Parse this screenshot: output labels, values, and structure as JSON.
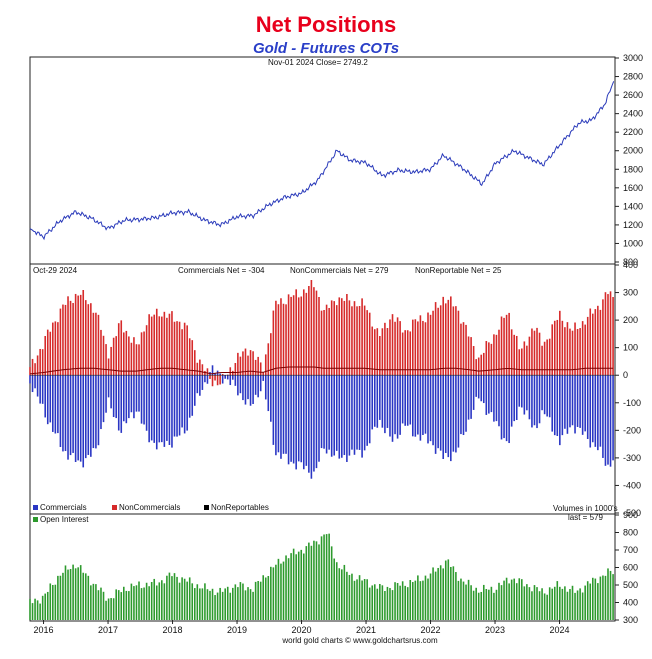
{
  "title": "Net Positions",
  "subtitle": "Gold - Futures COTs",
  "footer": "world gold charts © www.goldchartsrus.com",
  "colors": {
    "price": "#2a3aba",
    "commercials": "#2a36c4",
    "noncommercials": "#d62a2a",
    "nonreportables": "#000000",
    "open_interest": "#2d9a2d",
    "title": "#e8001c",
    "subtitle": "#2a3fc8"
  },
  "panels": {
    "price": {
      "annotation": "Nov-01  2024   Close= 2749.2"
    },
    "net": {
      "date": "Oct-29  2024",
      "commercials_label": "Commercials Net = -304",
      "noncommercials_label": "NonCommercials Net = 279",
      "nonreportables_label": "NonReportable Net = 25",
      "legend": [
        "Commercials",
        "NonCommercials",
        "NonReportables"
      ],
      "volume_note": "Volumes in 1000's"
    },
    "oi": {
      "legend": "Open Interest",
      "last": "last = 579"
    }
  },
  "chart_data": [
    {
      "type": "line",
      "name": "price",
      "x": [
        2015.79,
        2016.0,
        2016.25,
        2016.5,
        2016.75,
        2017.0,
        2017.25,
        2017.5,
        2017.75,
        2018.0,
        2018.25,
        2018.5,
        2018.75,
        2019.0,
        2019.25,
        2019.5,
        2019.75,
        2020.0,
        2020.25,
        2020.55,
        2020.75,
        2021.0,
        2021.25,
        2021.5,
        2021.75,
        2022.0,
        2022.2,
        2022.5,
        2022.8,
        2023.0,
        2023.3,
        2023.5,
        2023.75,
        2024.0,
        2024.3,
        2024.5,
        2024.7,
        2024.84
      ],
      "values": [
        1160,
        1070,
        1240,
        1340,
        1270,
        1160,
        1250,
        1260,
        1280,
        1330,
        1340,
        1250,
        1200,
        1290,
        1300,
        1420,
        1500,
        1540,
        1680,
        2000,
        1900,
        1870,
        1730,
        1790,
        1770,
        1800,
        1950,
        1810,
        1640,
        1860,
        2000,
        1930,
        1850,
        2060,
        2300,
        2330,
        2500,
        2749
      ],
      "ylim": [
        800,
        3000
      ],
      "yticks": [
        800,
        1000,
        1200,
        1400,
        1600,
        1800,
        2000,
        2200,
        2400,
        2600,
        2800,
        3000
      ]
    },
    {
      "type": "bar",
      "name": "net_positions",
      "x": [
        2015.79,
        2016.0,
        2016.3,
        2016.55,
        2016.8,
        2017.0,
        2017.2,
        2017.45,
        2017.6,
        2017.8,
        2018.0,
        2018.2,
        2018.4,
        2018.6,
        2018.75,
        2019.0,
        2019.2,
        2019.4,
        2019.6,
        2019.8,
        2020.0,
        2020.2,
        2020.35,
        2020.55,
        2020.75,
        2021.0,
        2021.2,
        2021.4,
        2021.6,
        2021.8,
        2022.0,
        2022.2,
        2022.4,
        2022.6,
        2022.75,
        2023.0,
        2023.2,
        2023.4,
        2023.6,
        2023.75,
        2024.0,
        2024.2,
        2024.4,
        2024.6,
        2024.75,
        2024.83
      ],
      "series": [
        {
          "name": "NonCommercials",
          "values": [
            20,
            120,
            250,
            300,
            240,
            80,
            190,
            100,
            200,
            230,
            210,
            180,
            60,
            -20,
            -30,
            60,
            100,
            20,
            260,
            280,
            300,
            330,
            230,
            280,
            270,
            250,
            140,
            220,
            160,
            200,
            220,
            280,
            250,
            140,
            60,
            150,
            230,
            80,
            180,
            110,
            220,
            160,
            200,
            250,
            300,
            279
          ]
        },
        {
          "name": "Commercials",
          "values": [
            -20,
            -130,
            -270,
            -320,
            -280,
            -100,
            -200,
            -120,
            -220,
            -260,
            -240,
            -200,
            -80,
            20,
            0,
            -50,
            -120,
            -30,
            -280,
            -310,
            -330,
            -360,
            -260,
            -300,
            -290,
            -270,
            -160,
            -240,
            -180,
            -220,
            -240,
            -300,
            -280,
            -160,
            -80,
            -170,
            -250,
            -100,
            -200,
            -130,
            -240,
            -180,
            -220,
            -270,
            -330,
            -304
          ]
        },
        {
          "name": "NonReportables",
          "values": [
            5,
            10,
            20,
            25,
            25,
            20,
            15,
            15,
            20,
            25,
            25,
            20,
            15,
            5,
            10,
            10,
            15,
            10,
            25,
            30,
            30,
            30,
            25,
            25,
            25,
            25,
            20,
            20,
            20,
            20,
            20,
            25,
            25,
            20,
            15,
            20,
            25,
            20,
            20,
            20,
            20,
            20,
            25,
            25,
            25,
            25
          ]
        }
      ],
      "ylim": [
        -500,
        400
      ],
      "yticks": [
        -500,
        -400,
        -300,
        -200,
        -100,
        0,
        100,
        200,
        300,
        400
      ]
    },
    {
      "type": "bar",
      "name": "open_interest",
      "x": [
        2015.79,
        2016.0,
        2016.25,
        2016.5,
        2016.75,
        2017.0,
        2017.25,
        2017.5,
        2017.75,
        2018.0,
        2018.25,
        2018.5,
        2018.75,
        2019.0,
        2019.25,
        2019.5,
        2019.75,
        2020.0,
        2020.2,
        2020.4,
        2020.55,
        2020.75,
        2021.0,
        2021.25,
        2021.5,
        2021.75,
        2022.0,
        2022.25,
        2022.5,
        2022.75,
        2023.0,
        2023.25,
        2023.5,
        2023.75,
        2024.0,
        2024.25,
        2024.5,
        2024.7,
        2024.83
      ],
      "values": [
        400,
        430,
        560,
        620,
        520,
        420,
        480,
        500,
        510,
        560,
        520,
        480,
        460,
        500,
        480,
        580,
        660,
        700,
        740,
        800,
        620,
        560,
        520,
        480,
        500,
        520,
        560,
        640,
        520,
        470,
        480,
        540,
        500,
        460,
        500,
        460,
        520,
        560,
        579
      ],
      "ylim": [
        300,
        900
      ],
      "yticks": [
        300,
        400,
        500,
        600,
        700,
        800,
        900
      ]
    }
  ],
  "x_axis": {
    "ticks": [
      "2016",
      "2017",
      "2018",
      "2019",
      "2020",
      "2021",
      "2022",
      "2023",
      "2024"
    ],
    "range": [
      2015.79,
      2024.86
    ]
  }
}
